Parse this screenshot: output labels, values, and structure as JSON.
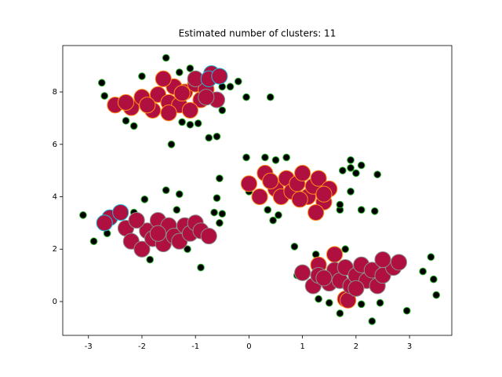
{
  "chart_data": {
    "type": "scatter",
    "title": "Estimated number of clusters: 11",
    "xlim": [
      -3.48,
      3.79
    ],
    "ylim": [
      -1.29,
      9.77
    ],
    "xticks": [
      -3,
      -2,
      -1,
      0,
      1,
      2,
      3
    ],
    "yticks": [
      0,
      2,
      4,
      6,
      8
    ],
    "series": [
      {
        "color": "#000000",
        "edgecolor": "#22aa22",
        "marker_size": 6,
        "x": [
          -3.1,
          -2.9,
          -2.65,
          -2.15,
          -1.95,
          -1.55,
          -1.35,
          -1.3,
          -0.9,
          -1.15,
          -1.85,
          -0.65,
          -0.6,
          -0.55,
          -0.5,
          -0.55,
          -2.75,
          -2.7,
          -2.3,
          -2.15,
          -2.0,
          -1.6,
          -1.55,
          -1.45,
          -1.3,
          -1.25,
          -1.1,
          -0.95,
          -1.1,
          -0.75,
          -0.6,
          -0.5,
          -0.5,
          -0.2,
          0.4,
          -0.05,
          -0.35,
          0.0,
          -0.05,
          0.3,
          0.5,
          0.7,
          0.35,
          0.45,
          0.55,
          1.7,
          1.7,
          1.75,
          1.9,
          1.9,
          1.9,
          2.0,
          2.1,
          2.1,
          2.35,
          2.4,
          0.85,
          1.25,
          1.3,
          1.5,
          1.7,
          1.8,
          2.1,
          2.3,
          2.45,
          2.95,
          3.25,
          3.4,
          3.45,
          3.5,
          0.9
        ],
        "y": [
          3.3,
          2.3,
          2.6,
          3.4,
          3.9,
          4.25,
          3.5,
          4.1,
          1.3,
          2.0,
          1.6,
          3.4,
          3.95,
          4.7,
          3.35,
          3.0,
          8.35,
          7.85,
          6.9,
          6.7,
          8.6,
          8.6,
          9.3,
          6.0,
          8.75,
          6.85,
          6.75,
          6.8,
          8.9,
          6.25,
          6.3,
          7.3,
          8.2,
          8.4,
          7.8,
          7.8,
          8.2,
          4.2,
          5.5,
          5.5,
          5.4,
          5.5,
          3.5,
          3.1,
          3.3,
          3.5,
          3.7,
          5.0,
          5.1,
          5.4,
          4.2,
          4.9,
          5.2,
          3.5,
          3.45,
          4.85,
          2.1,
          1.8,
          0.1,
          -0.05,
          -0.45,
          2.0,
          -0.1,
          -0.75,
          -0.05,
          -0.35,
          1.15,
          1.7,
          0.85,
          0.25,
          1.0
        ]
      },
      {
        "color": "#b0103f",
        "edgecolor": "#ff8c1a",
        "marker_size": 14,
        "x": [
          -2.5,
          -2.2,
          -2.0,
          -1.8,
          -1.7,
          -1.5,
          -1.4,
          -1.3,
          -1.2,
          -1.0,
          -0.9,
          -1.6,
          -1.1,
          -0.8,
          -1.9,
          -2.3,
          -1.5,
          -1.25,
          0.0,
          0.3,
          0.5,
          0.6,
          0.7,
          0.8,
          0.9,
          1.0,
          1.1,
          1.2,
          1.3,
          1.4,
          1.5,
          0.4,
          0.2,
          1.25,
          0.95,
          1.4,
          1.6,
          1.3,
          1.8,
          1.85
        ],
        "y": [
          7.5,
          7.4,
          7.8,
          7.3,
          7.9,
          7.6,
          8.2,
          7.5,
          8.0,
          8.3,
          7.7,
          8.5,
          7.3,
          8.1,
          7.5,
          7.6,
          7.2,
          7.95,
          4.5,
          4.9,
          4.3,
          4.0,
          4.7,
          4.2,
          4.5,
          4.9,
          4.0,
          4.4,
          4.7,
          3.8,
          4.3,
          4.6,
          4.0,
          3.4,
          3.9,
          4.1,
          1.8,
          1.4,
          0.1,
          0.05
        ]
      },
      {
        "color": "#b0103f",
        "edgecolor": "#8c8c8c",
        "marker_size": 14,
        "x": [
          -0.6,
          -0.8,
          -1.0,
          -2.3,
          -2.2,
          -2.0,
          -1.9,
          -1.8,
          -1.7,
          -1.6,
          -1.5,
          -1.4,
          -1.3,
          -1.2,
          -1.1,
          -1.0,
          -0.9,
          -0.75,
          -1.7,
          -2.1,
          1.0,
          1.2,
          1.3,
          1.5,
          1.6,
          1.7,
          1.8,
          1.9,
          2.0,
          2.1,
          2.2,
          2.3,
          2.4,
          2.5,
          2.7,
          2.8,
          2.5,
          2.0,
          1.4
        ],
        "y": [
          7.7,
          7.8,
          8.5,
          2.8,
          2.3,
          2.0,
          2.7,
          2.4,
          3.1,
          2.2,
          2.9,
          2.5,
          2.3,
          2.9,
          2.6,
          3.0,
          2.7,
          2.5,
          2.6,
          3.1,
          1.1,
          0.6,
          1.0,
          0.7,
          1.2,
          0.8,
          1.3,
          0.6,
          1.0,
          1.4,
          0.8,
          1.2,
          0.6,
          1.0,
          1.3,
          1.5,
          1.6,
          0.5,
          0.9
        ]
      },
      {
        "color": "#b0103f",
        "edgecolor": "#1fb8d8",
        "marker_size": 14,
        "x": [
          -0.7,
          -0.75,
          -0.55,
          -2.6,
          -2.4,
          -2.7
        ],
        "y": [
          8.7,
          8.5,
          8.6,
          3.2,
          3.4,
          3.0
        ]
      }
    ]
  }
}
